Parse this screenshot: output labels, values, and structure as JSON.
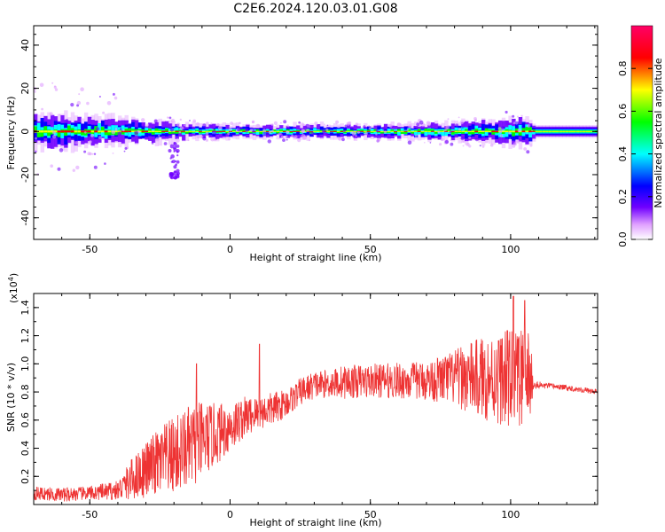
{
  "figure_title": "C2E6.2024.120.03.01.G08",
  "chart_data": [
    {
      "type": "heatmap",
      "title": "",
      "xlabel": "Height of straight line (km)",
      "ylabel": "Frequency (Hz)",
      "xlim": [
        -70,
        131
      ],
      "ylim": [
        -50,
        49
      ],
      "x_ticks": [
        -50,
        0,
        50,
        100
      ],
      "y_ticks": [
        -40,
        -20,
        0,
        20,
        40
      ],
      "colorbar": {
        "label": "Normalized spectral amplitude",
        "range": [
          0,
          1
        ],
        "ticks": [
          0.0,
          0.2,
          0.4,
          0.6,
          0.8
        ],
        "colormap": [
          "#ffffff",
          "#e0a0ff",
          "#7000ff",
          "#0000ff",
          "#00ffff",
          "#00ff00",
          "#ffff00",
          "#ff0000",
          "#ff0066"
        ]
      },
      "ridge_frequency_hz": 0,
      "spread": [
        {
          "x": -70,
          "halfwidth_hz": 8
        },
        {
          "x": -50,
          "halfwidth_hz": 7
        },
        {
          "x": -30,
          "halfwidth_hz": 5
        },
        {
          "x": -10,
          "halfwidth_hz": 3
        },
        {
          "x": 10,
          "halfwidth_hz": 3
        },
        {
          "x": 50,
          "halfwidth_hz": 3
        },
        {
          "x": 80,
          "halfwidth_hz": 4
        },
        {
          "x": 100,
          "halfwidth_hz": 6
        },
        {
          "x": 107,
          "halfwidth_hz": 6
        },
        {
          "x": 108,
          "halfwidth_hz": 3
        },
        {
          "x": 131,
          "halfwidth_hz": 3
        }
      ]
    },
    {
      "type": "line",
      "title": "",
      "xlabel": "Height of straight line (km)",
      "ylabel": "SNR (10 * v/v)",
      "y_multiplier": "(x10",
      "y_multiplier_exp": "4",
      "y_multiplier_close": ")",
      "xlim": [
        -70,
        131
      ],
      "ylim": [
        0,
        1.5
      ],
      "x_ticks": [
        -50,
        0,
        50,
        100
      ],
      "y_ticks": [
        0.2,
        0.4,
        0.6,
        0.8,
        1.0,
        1.2,
        1.4
      ],
      "line_color": "#ee3333",
      "series": [
        {
          "x": [
            -70,
            -60,
            -50,
            -40,
            -35,
            -30,
            -25,
            -20,
            -15,
            -10,
            -5,
            0,
            5,
            10,
            15,
            20,
            25,
            30,
            35,
            40,
            50,
            60,
            70,
            80,
            90,
            100,
            107,
            108,
            115,
            120,
            131
          ],
          "values": [
            0.08,
            0.07,
            0.08,
            0.1,
            0.18,
            0.25,
            0.3,
            0.35,
            0.4,
            0.45,
            0.5,
            0.55,
            0.62,
            0.65,
            0.68,
            0.72,
            0.8,
            0.85,
            0.86,
            0.87,
            0.88,
            0.88,
            0.88,
            0.9,
            0.9,
            0.9,
            0.9,
            0.85,
            0.84,
            0.83,
            0.8
          ],
          "noise_amplitude": [
            0.05,
            0.05,
            0.05,
            0.07,
            0.15,
            0.2,
            0.25,
            0.28,
            0.3,
            0.28,
            0.22,
            0.18,
            0.15,
            0.12,
            0.12,
            0.1,
            0.1,
            0.1,
            0.1,
            0.12,
            0.12,
            0.13,
            0.14,
            0.2,
            0.3,
            0.35,
            0.35,
            0.03,
            0.02,
            0.02,
            0.02
          ]
        }
      ],
      "spikes": [
        {
          "x": -12,
          "value": 1.0
        },
        {
          "x": 10.5,
          "value": 1.14
        },
        {
          "x": 101,
          "value": 1.48
        },
        {
          "x": 105,
          "value": 1.45
        }
      ]
    }
  ]
}
